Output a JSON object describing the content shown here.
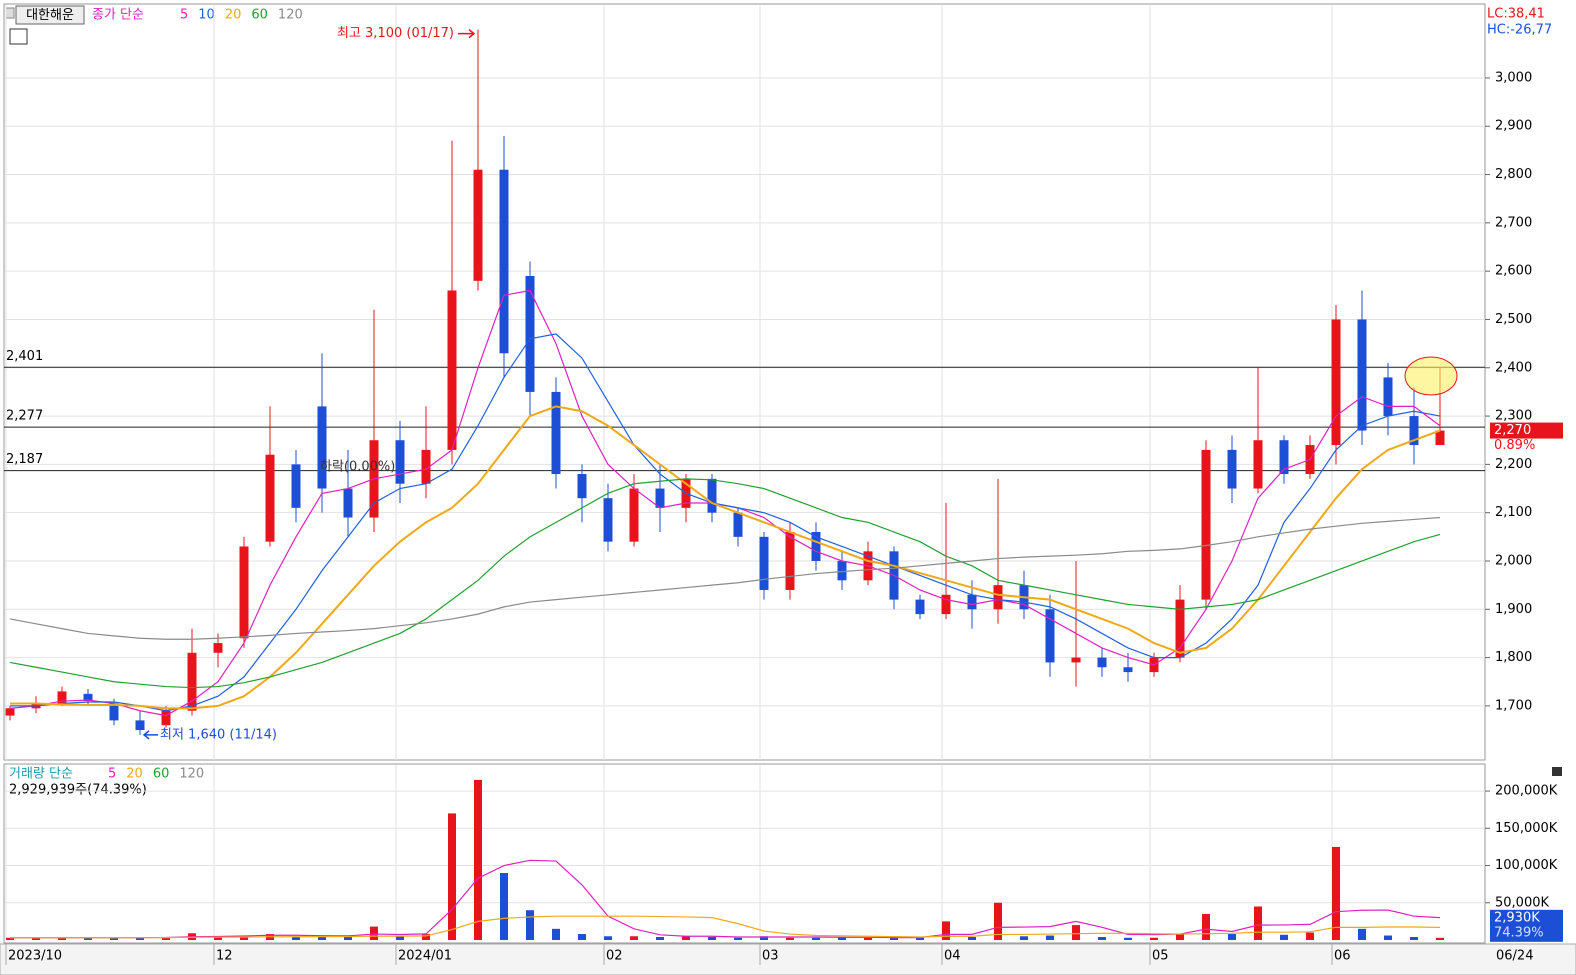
{
  "stock_name": "대한해운",
  "lc": "LC:38,41",
  "hc": "HC:-26,77",
  "chart_data": [
    {
      "type": "candlestick",
      "legend_title": "종가 단순",
      "categories": [
        "2023/10",
        null,
        null,
        null,
        null,
        null,
        null,
        null,
        "12",
        null,
        null,
        null,
        null,
        null,
        null,
        "2024/01",
        null,
        null,
        null,
        null,
        null,
        null,
        null,
        "02",
        null,
        null,
        null,
        null,
        null,
        "03",
        null,
        null,
        null,
        null,
        null,
        null,
        "04",
        null,
        null,
        null,
        null,
        null,
        null,
        null,
        "05",
        null,
        null,
        null,
        null,
        null,
        null,
        "06",
        null,
        null,
        null,
        null
      ],
      "x_end_label": "06/24",
      "ohlc": [
        [
          1680,
          1700,
          1670,
          1695
        ],
        [
          1695,
          1720,
          1685,
          1705
        ],
        [
          1705,
          1740,
          1700,
          1730
        ],
        [
          1725,
          1735,
          1700,
          1710
        ],
        [
          1705,
          1715,
          1660,
          1670
        ],
        [
          1670,
          1690,
          1640,
          1650
        ],
        [
          1660,
          1700,
          1655,
          1690
        ],
        [
          1690,
          1860,
          1680,
          1810
        ],
        [
          1810,
          1850,
          1780,
          1830
        ],
        [
          1840,
          2050,
          1820,
          2030
        ],
        [
          2040,
          2320,
          2030,
          2220
        ],
        [
          2200,
          2230,
          2080,
          2110
        ],
        [
          2320,
          2430,
          2100,
          2150
        ],
        [
          2150,
          2230,
          2050,
          2090
        ],
        [
          2090,
          2520,
          2060,
          2250
        ],
        [
          2250,
          2290,
          2120,
          2160
        ],
        [
          2160,
          2320,
          2130,
          2230
        ],
        [
          2230,
          2870,
          2200,
          2560
        ],
        [
          2580,
          3100,
          2560,
          2810
        ],
        [
          2810,
          2880,
          2380,
          2430
        ],
        [
          2590,
          2620,
          2300,
          2350
        ],
        [
          2350,
          2380,
          2150,
          2180
        ],
        [
          2180,
          2200,
          2080,
          2130
        ],
        [
          2130,
          2160,
          2020,
          2040
        ],
        [
          2040,
          2180,
          2030,
          2150
        ],
        [
          2150,
          2200,
          2060,
          2110
        ],
        [
          2110,
          2180,
          2080,
          2170
        ],
        [
          2170,
          2180,
          2080,
          2100
        ],
        [
          2100,
          2110,
          2030,
          2050
        ],
        [
          2050,
          2060,
          1920,
          1940
        ],
        [
          1940,
          2080,
          1920,
          2060
        ],
        [
          2060,
          2080,
          1980,
          2000
        ],
        [
          2000,
          2020,
          1940,
          1960
        ],
        [
          1960,
          2040,
          1950,
          2020
        ],
        [
          2020,
          2030,
          1900,
          1920
        ],
        [
          1920,
          1930,
          1880,
          1890
        ],
        [
          1890,
          2120,
          1880,
          1930
        ],
        [
          1930,
          1960,
          1860,
          1900
        ],
        [
          1900,
          2170,
          1870,
          1950
        ],
        [
          1950,
          1980,
          1880,
          1900
        ],
        [
          1900,
          1930,
          1760,
          1790
        ],
        [
          1790,
          2000,
          1740,
          1800
        ],
        [
          1800,
          1820,
          1760,
          1780
        ],
        [
          1780,
          1810,
          1750,
          1770
        ],
        [
          1770,
          1810,
          1760,
          1800
        ],
        [
          1800,
          1950,
          1790,
          1920
        ],
        [
          1920,
          2250,
          1900,
          2230
        ],
        [
          2230,
          2260,
          2120,
          2150
        ],
        [
          2150,
          2400,
          2140,
          2250
        ],
        [
          2250,
          2260,
          2160,
          2180
        ],
        [
          2180,
          2260,
          2170,
          2240
        ],
        [
          2240,
          2530,
          2200,
          2500
        ],
        [
          2500,
          2560,
          2240,
          2270
        ],
        [
          2380,
          2410,
          2260,
          2300
        ],
        [
          2300,
          2360,
          2200,
          2240
        ],
        [
          2240,
          2400,
          2240,
          2270
        ]
      ],
      "up_color": "#e8141b",
      "down_color": "#1d4fd6",
      "series": [
        {
          "name": "5",
          "color": "#e020c0",
          "values": [
            1695,
            1700,
            1710,
            1712,
            1705,
            1690,
            1680,
            1710,
            1750,
            1830,
            1950,
            2050,
            2140,
            2150,
            2170,
            2180,
            2190,
            2230,
            2400,
            2550,
            2560,
            2450,
            2300,
            2200,
            2150,
            2110,
            2120,
            2120,
            2110,
            2090,
            2050,
            2020,
            2000,
            1990,
            1970,
            1940,
            1920,
            1910,
            1920,
            1910,
            1880,
            1850,
            1820,
            1800,
            1785,
            1820,
            1900,
            2000,
            2130,
            2190,
            2210,
            2300,
            2340,
            2320,
            2320,
            2280
          ]
        },
        {
          "name": "10",
          "color": "#2060e0",
          "values": [
            1700,
            1700,
            1705,
            1708,
            1708,
            1700,
            1690,
            1700,
            1720,
            1760,
            1830,
            1900,
            1980,
            2050,
            2120,
            2150,
            2160,
            2190,
            2280,
            2380,
            2460,
            2470,
            2420,
            2330,
            2240,
            2180,
            2140,
            2120,
            2110,
            2100,
            2080,
            2050,
            2030,
            2010,
            1990,
            1970,
            1950,
            1930,
            1920,
            1915,
            1905,
            1880,
            1850,
            1820,
            1800,
            1800,
            1830,
            1880,
            1950,
            2080,
            2150,
            2230,
            2280,
            2300,
            2310,
            2300
          ]
        },
        {
          "name": "20",
          "color": "#f0a818",
          "values": [
            1705,
            1705,
            1703,
            1702,
            1702,
            1700,
            1695,
            1695,
            1700,
            1720,
            1760,
            1810,
            1870,
            1930,
            1990,
            2040,
            2080,
            2110,
            2160,
            2230,
            2300,
            2320,
            2310,
            2280,
            2240,
            2200,
            2160,
            2120,
            2100,
            2080,
            2060,
            2040,
            2020,
            2000,
            1990,
            1975,
            1960,
            1945,
            1930,
            1925,
            1920,
            1900,
            1880,
            1860,
            1830,
            1810,
            1820,
            1860,
            1920,
            1990,
            2060,
            2130,
            2190,
            2230,
            2250,
            2270
          ]
        },
        {
          "name": "60",
          "color": "#20a030",
          "values": [
            1790,
            1780,
            1770,
            1760,
            1750,
            1745,
            1740,
            1738,
            1740,
            1748,
            1760,
            1775,
            1790,
            1810,
            1830,
            1850,
            1880,
            1920,
            1960,
            2010,
            2050,
            2080,
            2110,
            2140,
            2160,
            2165,
            2170,
            2168,
            2160,
            2150,
            2130,
            2110,
            2090,
            2080,
            2060,
            2040,
            2010,
            1990,
            1960,
            1950,
            1940,
            1930,
            1920,
            1910,
            1905,
            1900,
            1905,
            1910,
            1920,
            1940,
            1960,
            1980,
            2000,
            2020,
            2040,
            2055
          ]
        },
        {
          "name": "120",
          "color": "#8a8a8a",
          "values": [
            1880,
            1870,
            1860,
            1850,
            1845,
            1840,
            1838,
            1838,
            1840,
            1843,
            1846,
            1850,
            1853,
            1856,
            1860,
            1866,
            1872,
            1880,
            1890,
            1905,
            1915,
            1920,
            1925,
            1930,
            1935,
            1940,
            1945,
            1950,
            1955,
            1962,
            1968,
            1974,
            1978,
            1982,
            1985,
            1990,
            1995,
            2000,
            2005,
            2008,
            2010,
            2012,
            2015,
            2020,
            2022,
            2025,
            2032,
            2040,
            2050,
            2058,
            2066,
            2072,
            2078,
            2082,
            2086,
            2090
          ]
        }
      ],
      "ylim": [
        1588,
        3151
      ],
      "yticks": [
        {
          "value": 1700,
          "label": "1,700"
        },
        {
          "value": 1800,
          "label": "1,800"
        },
        {
          "value": 1900,
          "label": "1,900"
        },
        {
          "value": 2000,
          "label": "2,000"
        },
        {
          "value": 2100,
          "label": "2,100"
        },
        {
          "value": 2200,
          "label": "2,200"
        },
        {
          "value": 2300,
          "label": "2,300"
        },
        {
          "value": 2400,
          "label": "2,400"
        },
        {
          "value": 2500,
          "label": "2,500"
        },
        {
          "value": 2600,
          "label": "2,600"
        },
        {
          "value": 2700,
          "label": "2,700"
        },
        {
          "value": 2800,
          "label": "2,800"
        },
        {
          "value": 2900,
          "label": "2,900"
        },
        {
          "value": 3000,
          "label": "3,000"
        }
      ],
      "hlines": [
        {
          "value": 2401,
          "label": "2,401"
        },
        {
          "value": 2277,
          "label": "2,277"
        },
        {
          "value": 2187,
          "label": "2,187"
        }
      ],
      "max_note": {
        "value": 3100,
        "label": "최고 3,100 (01/17)"
      },
      "min_note": {
        "value": 1640,
        "label": "최저 1,640 (11/14)"
      },
      "note": "하락(0.00%)",
      "price_tag": {
        "value": 2270,
        "label": "2,270",
        "change": "0.89%"
      },
      "grid": true
    },
    {
      "type": "volume",
      "legend_title": "거래량 단순",
      "info": "2,929,939주(74.39%)",
      "values": [
        3000,
        3000,
        3000,
        3000,
        3000,
        3000,
        4000,
        9000,
        5000,
        6000,
        8000,
        4000,
        6000,
        4000,
        18000,
        5000,
        8000,
        170000,
        215000,
        90000,
        40000,
        15000,
        8000,
        5000,
        5000,
        4000,
        5000,
        4000,
        3000,
        5000,
        3000,
        3000,
        4000,
        3000,
        3000,
        3000,
        25000,
        4000,
        50000,
        5000,
        6000,
        20000,
        4000,
        3000,
        3000,
        8000,
        35000,
        8000,
        45000,
        7000,
        10000,
        125000,
        15000,
        6000,
        4000,
        2930
      ],
      "series": [
        {
          "name": "5",
          "color": "#e020c0",
          "values": [
            3000,
            3000,
            3000,
            3000,
            3000,
            3200,
            3400,
            4400,
            4800,
            5400,
            6400,
            6400,
            5800,
            5600,
            8000,
            7400,
            8200,
            41000,
            83000,
            100000,
            107000,
            106000,
            74000,
            32000,
            15000,
            7000,
            5000,
            5000,
            4000,
            4000,
            4000,
            4000,
            3600,
            3600,
            3200,
            3200,
            7600,
            7600,
            17000,
            17400,
            18000,
            25000,
            17000,
            7600,
            7200,
            8000,
            14600,
            11400,
            20000,
            20200,
            21000,
            38000,
            40000,
            40200,
            32000,
            30000
          ]
        },
        {
          "name": "20",
          "color": "#f0a818",
          "values": [
            3000,
            3000,
            3000,
            3000,
            3000,
            3100,
            3200,
            3600,
            3800,
            4000,
            4300,
            4400,
            4500,
            4600,
            5200,
            5200,
            5500,
            14000,
            25000,
            29000,
            31000,
            32000,
            32000,
            32000,
            32000,
            31500,
            31000,
            30000,
            22000,
            12000,
            8000,
            6000,
            5500,
            5000,
            4500,
            4000,
            5000,
            5000,
            7500,
            7500,
            8000,
            8500,
            9000,
            9000,
            8500,
            8000,
            8500,
            9000,
            10500,
            10500,
            11000,
            17000,
            17000,
            17500,
            17500,
            17000
          ]
        }
      ],
      "legend_only": [
        {
          "name": "60",
          "color": "#20a030"
        },
        {
          "name": "120",
          "color": "#8a8a8a"
        }
      ],
      "ylim": [
        0,
        235000
      ],
      "yticks": [
        {
          "value": 50000,
          "label": "50,000K"
        },
        {
          "value": 100000,
          "label": "100,000K"
        },
        {
          "value": 150000,
          "label": "150,000K"
        },
        {
          "value": 200000,
          "label": "200,000K"
        }
      ],
      "volume_tag": {
        "value": 2930,
        "label": "2,930K",
        "ratio": "74.39%"
      }
    }
  ]
}
